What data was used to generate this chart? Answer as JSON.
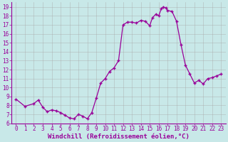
{
  "x": [
    0,
    1,
    2,
    2.5,
    3,
    3.5,
    4,
    4.5,
    5,
    5.5,
    6,
    6.5,
    7,
    7.5,
    8,
    8.5,
    9,
    9.5,
    10,
    10.5,
    11,
    11.5,
    12,
    12.5,
    13,
    13.5,
    14,
    14.5,
    15,
    15.3,
    15.7,
    16,
    16.3,
    16.5,
    16.8,
    17,
    17.5,
    18,
    18.5,
    19,
    19.5,
    20,
    20.5,
    21,
    21.5,
    22,
    22.5,
    23
  ],
  "y": [
    8.7,
    7.9,
    8.2,
    8.6,
    7.8,
    7.3,
    7.5,
    7.4,
    7.2,
    6.9,
    6.6,
    6.5,
    7.0,
    6.8,
    6.5,
    7.2,
    8.8,
    10.5,
    11.0,
    11.8,
    12.2,
    13.0,
    17.0,
    17.3,
    17.3,
    17.2,
    17.5,
    17.4,
    16.9,
    17.8,
    18.2,
    18.0,
    18.8,
    19.0,
    18.9,
    18.6,
    18.5,
    17.4,
    14.8,
    12.5,
    11.5,
    10.5,
    10.8,
    10.4,
    11.0,
    11.1,
    11.3,
    11.5
  ],
  "xlim": [
    -0.5,
    23.5
  ],
  "ylim": [
    6,
    19.5
  ],
  "xticks": [
    0,
    1,
    2,
    3,
    4,
    5,
    6,
    7,
    8,
    9,
    10,
    11,
    12,
    13,
    14,
    15,
    16,
    17,
    18,
    19,
    20,
    21,
    22,
    23
  ],
  "yticks": [
    6,
    7,
    8,
    9,
    10,
    11,
    12,
    13,
    14,
    15,
    16,
    17,
    18,
    19
  ],
  "xlabel": "Windchill (Refroidissement éolien,°C)",
  "line_color": "#990099",
  "marker_color": "#990099",
  "bg_color": "#c8e8e8",
  "grid_color": "#aaaaaa",
  "font_color": "#990099",
  "font_family": "monospace",
  "tick_fontsize": 5.5,
  "xlabel_fontsize": 6.5
}
